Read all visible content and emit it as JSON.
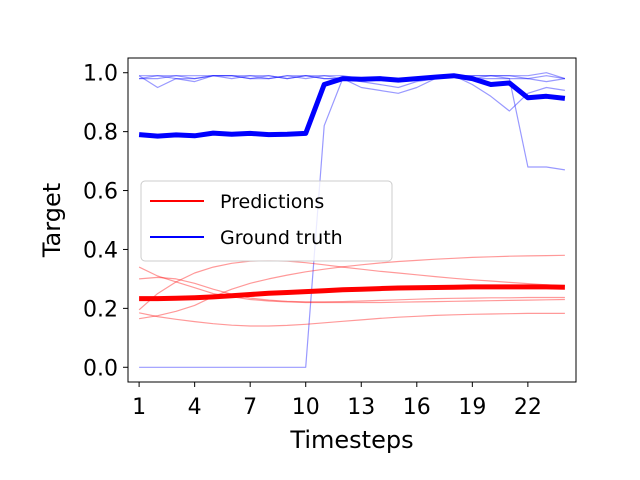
{
  "chart_data": {
    "type": "line",
    "xlabel": "Timesteps",
    "ylabel": "Target",
    "xlim": [
      0.4,
      24.6
    ],
    "ylim": [
      -0.05,
      1.05
    ],
    "xticks": [
      1,
      4,
      7,
      10,
      13,
      16,
      19,
      22
    ],
    "yticks": [
      0.0,
      0.2,
      0.4,
      0.6,
      0.8,
      1.0
    ],
    "ytick_labels": [
      "0.0",
      "0.2",
      "0.4",
      "0.6",
      "0.8",
      "1.0"
    ],
    "x": [
      1,
      2,
      3,
      4,
      5,
      6,
      7,
      8,
      9,
      10,
      11,
      12,
      13,
      14,
      15,
      16,
      17,
      18,
      19,
      20,
      21,
      22,
      23,
      24
    ],
    "legend": {
      "placement": "center-left",
      "entries": [
        {
          "label": "Predictions",
          "color": "#ff0000"
        },
        {
          "label": "Ground truth",
          "color": "#0000ff"
        }
      ]
    },
    "series": [
      {
        "group": "Ground truth",
        "kind": "sample",
        "color": "#0000ff",
        "values": [
          0.99,
          0.95,
          0.98,
          0.97,
          0.99,
          0.98,
          0.99,
          0.98,
          0.99,
          0.98,
          0.99,
          0.98,
          0.98,
          0.98,
          0.97,
          0.98,
          0.98,
          0.99,
          0.98,
          0.99,
          0.99,
          0.98,
          0.99,
          0.98
        ]
      },
      {
        "group": "Ground truth",
        "kind": "sample",
        "color": "#0000ff",
        "values": [
          0.98,
          0.99,
          0.98,
          0.98,
          0.99,
          0.99,
          0.98,
          0.99,
          0.98,
          0.99,
          0.98,
          0.98,
          0.97,
          0.96,
          0.95,
          0.97,
          0.98,
          0.99,
          0.96,
          0.92,
          0.87,
          0.93,
          0.95,
          0.94
        ]
      },
      {
        "group": "Ground truth",
        "kind": "sample",
        "color": "#0000ff",
        "values": [
          0.99,
          0.99,
          0.99,
          0.98,
          0.99,
          0.99,
          0.98,
          0.98,
          0.99,
          0.99,
          0.99,
          0.99,
          0.98,
          0.98,
          0.98,
          0.98,
          0.99,
          0.99,
          0.99,
          0.99,
          0.98,
          0.98,
          0.97,
          0.98
        ]
      },
      {
        "group": "Ground truth",
        "kind": "sample",
        "color": "#0000ff",
        "values": [
          0.98,
          0.98,
          0.99,
          0.99,
          0.99,
          0.99,
          0.99,
          0.99,
          0.98,
          0.99,
          0.98,
          0.98,
          0.98,
          0.98,
          0.98,
          0.98,
          0.98,
          0.99,
          0.98,
          0.98,
          0.98,
          0.68,
          0.68,
          0.67
        ]
      },
      {
        "group": "Ground truth",
        "kind": "sample",
        "color": "#0000ff",
        "values": [
          0.0,
          0.0,
          0.0,
          0.0,
          0.0,
          0.0,
          0.0,
          0.0,
          0.0,
          0.0,
          0.82,
          0.98,
          0.95,
          0.94,
          0.93,
          0.95,
          0.98,
          0.99,
          0.99,
          0.99,
          0.99,
          0.99,
          1.0,
          0.98
        ]
      },
      {
        "group": "Ground truth",
        "kind": "mean",
        "color": "#0000ff",
        "values": [
          0.79,
          0.785,
          0.789,
          0.786,
          0.795,
          0.791,
          0.794,
          0.79,
          0.791,
          0.794,
          0.96,
          0.98,
          0.978,
          0.98,
          0.975,
          0.98,
          0.985,
          0.99,
          0.98,
          0.96,
          0.965,
          0.915,
          0.92,
          0.913
        ]
      },
      {
        "group": "Predictions",
        "kind": "sample",
        "color": "#ff0000",
        "values": [
          0.34,
          0.31,
          0.29,
          0.27,
          0.25,
          0.24,
          0.23,
          0.225,
          0.222,
          0.22,
          0.22,
          0.22,
          0.22,
          0.22,
          0.221,
          0.222,
          0.223,
          0.224,
          0.225,
          0.226,
          0.227,
          0.228,
          0.229,
          0.23
        ]
      },
      {
        "group": "Predictions",
        "kind": "sample",
        "color": "#ff0000",
        "values": [
          0.195,
          0.25,
          0.29,
          0.32,
          0.34,
          0.353,
          0.36,
          0.362,
          0.36,
          0.355,
          0.348,
          0.34,
          0.333,
          0.326,
          0.32,
          0.314,
          0.308,
          0.302,
          0.297,
          0.293,
          0.288,
          0.284,
          0.28,
          0.276
        ]
      },
      {
        "group": "Predictions",
        "kind": "sample",
        "color": "#ff0000",
        "values": [
          0.185,
          0.172,
          0.163,
          0.155,
          0.148,
          0.143,
          0.14,
          0.14,
          0.142,
          0.146,
          0.151,
          0.156,
          0.161,
          0.166,
          0.17,
          0.173,
          0.176,
          0.178,
          0.18,
          0.181,
          0.182,
          0.183,
          0.183,
          0.183
        ]
      },
      {
        "group": "Predictions",
        "kind": "sample",
        "color": "#ff0000",
        "values": [
          0.165,
          0.175,
          0.19,
          0.21,
          0.24,
          0.265,
          0.285,
          0.3,
          0.313,
          0.324,
          0.333,
          0.341,
          0.348,
          0.354,
          0.359,
          0.363,
          0.367,
          0.37,
          0.373,
          0.375,
          0.377,
          0.378,
          0.379,
          0.38
        ]
      },
      {
        "group": "Predictions",
        "kind": "sample",
        "color": "#ff0000",
        "values": [
          0.3,
          0.305,
          0.3,
          0.285,
          0.265,
          0.248,
          0.235,
          0.228,
          0.224,
          0.222,
          0.222,
          0.223,
          0.225,
          0.227,
          0.229,
          0.231,
          0.233,
          0.234,
          0.235,
          0.236,
          0.236,
          0.237,
          0.237,
          0.237
        ]
      },
      {
        "group": "Predictions",
        "kind": "mean",
        "color": "#ff0000",
        "values": [
          0.233,
          0.233,
          0.234,
          0.236,
          0.239,
          0.243,
          0.247,
          0.251,
          0.254,
          0.257,
          0.26,
          0.263,
          0.265,
          0.267,
          0.269,
          0.27,
          0.271,
          0.272,
          0.273,
          0.273,
          0.273,
          0.273,
          0.273,
          0.272
        ]
      }
    ]
  }
}
